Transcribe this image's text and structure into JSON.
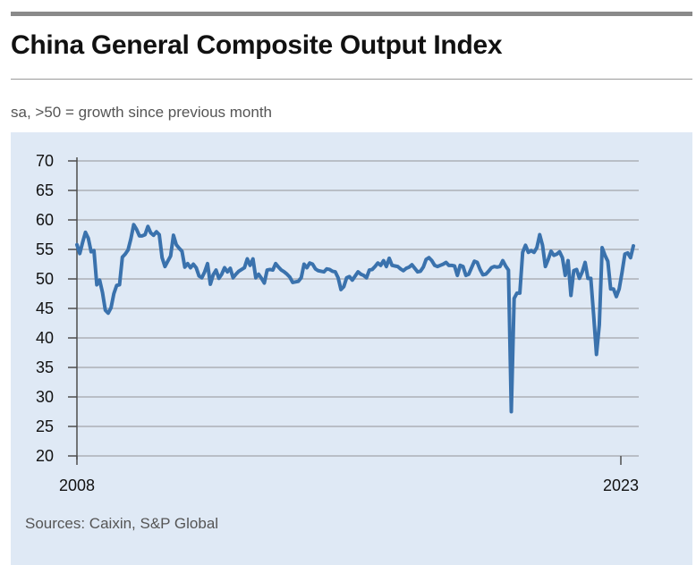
{
  "header": {
    "title": "China General Composite Output Index",
    "subtitle": "sa, >50 = growth since previous month"
  },
  "footer": {
    "source": "Sources: Caixin, S&P Global"
  },
  "colors": {
    "panel_background": "#dfe9f5",
    "line": "#3a72ad",
    "grid": "#b9bec6",
    "axis": "#4d4d4d"
  },
  "chart_data": {
    "type": "line",
    "title": "China General Composite Output Index",
    "subtitle": "sa, >50 = growth since previous month",
    "xlabel": "",
    "ylabel": "",
    "ylim": [
      20,
      70
    ],
    "y_ticks": [
      20,
      25,
      30,
      35,
      40,
      45,
      50,
      55,
      60,
      65,
      70
    ],
    "x_tick_labels": [
      "2008",
      "2023"
    ],
    "grid": "horizontal",
    "legend": "none",
    "series": [
      {
        "frequency": "monthly",
        "start": "2008-01",
        "values": [
          55.8,
          54.3,
          56.2,
          57.9,
          56.9,
          54.6,
          54.8,
          49.0,
          49.8,
          47.7,
          44.7,
          44.2,
          45.1,
          47.5,
          48.9,
          49.0,
          53.7,
          54.2,
          54.9,
          56.8,
          59.2,
          58.4,
          57.3,
          57.3,
          57.5,
          58.9,
          57.8,
          57.4,
          58.0,
          57.5,
          53.6,
          52.1,
          53.0,
          53.9,
          57.4,
          55.8,
          55.2,
          54.7,
          52.0,
          52.6,
          51.9,
          52.5,
          51.9,
          50.5,
          50.2,
          51.2,
          52.6,
          49.1,
          50.7,
          51.5,
          50.1,
          50.8,
          51.9,
          51.2,
          51.8,
          50.2,
          50.8,
          51.3,
          51.6,
          51.9,
          53.4,
          52.3,
          53.4,
          50.2,
          50.8,
          50.1,
          49.3,
          51.5,
          51.6,
          51.5,
          52.6,
          52.0,
          51.5,
          51.2,
          50.8,
          50.3,
          49.4,
          49.5,
          49.6,
          50.2,
          52.5,
          51.9,
          52.7,
          52.5,
          51.7,
          51.4,
          51.3,
          51.2,
          51.7,
          51.6,
          51.3,
          51.2,
          50.2,
          48.2,
          48.7,
          50.2,
          50.4,
          49.8,
          50.5,
          51.2,
          50.8,
          50.6,
          50.2,
          51.5,
          51.6,
          52.1,
          52.7,
          52.3,
          53.1,
          52.1,
          53.5,
          52.3,
          52.2,
          52.1,
          51.7,
          51.4,
          51.8,
          52.0,
          52.4,
          51.8,
          51.2,
          51.3,
          52.0,
          53.3,
          53.6,
          53.1,
          52.3,
          52.1,
          52.3,
          52.5,
          52.8,
          52.3,
          52.3,
          52.2,
          50.6,
          52.3,
          52.1,
          50.6,
          50.8,
          51.9,
          53.0,
          52.8,
          51.6,
          50.7,
          50.8,
          51.3,
          51.9,
          52.1,
          52.0,
          52.1,
          53.1,
          52.2,
          51.5,
          27.5,
          46.7,
          47.6,
          47.6,
          54.5,
          55.7,
          54.5,
          54.8,
          54.5,
          55.3,
          57.5,
          55.7,
          52.1,
          53.3,
          54.7,
          54.0,
          54.2,
          54.6,
          53.6,
          50.6,
          53.1,
          47.2,
          51.4,
          51.6,
          50.1,
          51.2,
          52.8,
          50.1,
          50.1,
          43.9,
          37.2,
          42.2,
          55.3,
          54.0,
          53.0,
          48.3,
          48.3,
          47.0,
          48.3,
          51.1,
          54.2,
          54.4,
          53.6,
          55.6
        ]
      }
    ]
  }
}
